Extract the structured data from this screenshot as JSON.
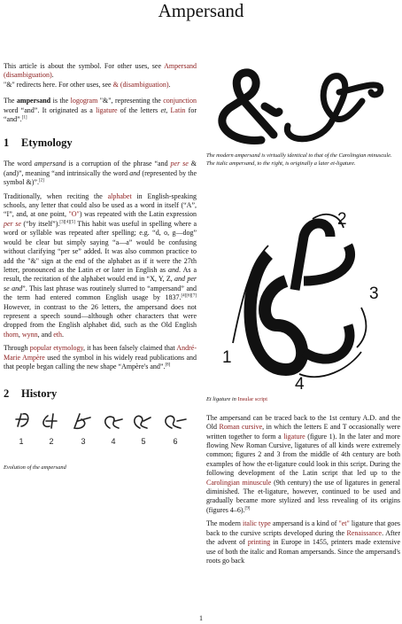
{
  "title": "Ampersand",
  "left": {
    "intro": [
      [
        "This article is about the symbol. For other uses, see ",
        {
          "text": "Ampersand (disambiguation)",
          "style": "link"
        },
        "."
      ],
      [
        "\"&\" redirects here. For other uses, see ",
        {
          "text": "& (disambiguation)",
          "style": "link"
        },
        "."
      ]
    ],
    "lead": [
      "The ",
      {
        "text": "ampersand",
        "style": "bold"
      },
      " is the ",
      {
        "text": "logogram",
        "style": "link"
      },
      " \"&\", representing the ",
      {
        "text": "conjunction",
        "style": "link"
      },
      " word “and”. It originated as a ",
      {
        "text": "ligature",
        "style": "link"
      },
      " of the letters ",
      {
        "text": "et",
        "style": "italic"
      },
      ", ",
      {
        "text": "Latin",
        "style": "link"
      },
      " for “and”.",
      {
        "text": "[1]",
        "style": "sup"
      }
    ],
    "etymology": {
      "number": "1",
      "heading": "Etymology",
      "paragraphs": [
        [
          "The word ",
          {
            "text": "ampersand",
            "style": "italic"
          },
          " is a corruption of the phrase “and ",
          {
            "text": "per se",
            "style": "linkitalic"
          },
          " & (and)”, meaning “and intrinsically the word ",
          {
            "text": "and",
            "style": "italic"
          },
          " (represented by the symbol &)”.",
          {
            "text": "[2]",
            "style": "sup"
          }
        ],
        [
          "Traditionally, when reciting the ",
          {
            "text": "alphabet",
            "style": "link"
          },
          " in English-speaking schools, any letter that could also be used as a word in itself (“A”, “I”, and, at one point, ",
          {
            "text": "\"O\"",
            "style": "link"
          },
          ") was repeated with the Latin expression ",
          {
            "text": "per se",
            "style": "linkitalic"
          },
          " (“by itself”).",
          {
            "text": "[3][4][5]",
            "style": "sup"
          },
          " This habit was useful in spelling where a word or syllable was repeated after spelling; e.g. “d, o, g—dog” would be clear but simply saying “a—a” would be confusing without clarifying “per se” added. It was also common practice to add the \"&\" sign at the end of the alphabet as if it were the 27th letter, pronounced as the Latin ",
          {
            "text": "et",
            "style": "italic"
          },
          " or later in English as ",
          {
            "text": "and",
            "style": "italic"
          },
          ". As a result, the recitation of the alphabet would end in “X, Y, Z, ",
          {
            "text": "and per se and",
            "style": "italic"
          },
          "”. This last phrase was routinely slurred to “ampersand” and the term had entered common English usage by 1837.",
          {
            "text": "[4][6][7]",
            "style": "sup"
          },
          " However, in contrast to the 26 letters, the ampersand does not represent a speech sound—although other characters that were dropped from the English alphabet did, such as the Old English ",
          {
            "text": "thorn",
            "style": "link"
          },
          ", ",
          {
            "text": "wynn",
            "style": "link"
          },
          ", and ",
          {
            "text": "eth",
            "style": "link"
          },
          "."
        ],
        [
          "Through ",
          {
            "text": "popular etymology",
            "style": "link"
          },
          ", it has been falsely claimed that ",
          {
            "text": "André-Marie Ampère",
            "style": "link"
          },
          " used the symbol in his widely read publications and that people began calling the new shape “Ampère's and”.",
          {
            "text": "[8]",
            "style": "sup"
          }
        ]
      ]
    },
    "history": {
      "number": "2",
      "heading": "History",
      "figure_labels": [
        "1",
        "2",
        "3",
        "4",
        "5",
        "6"
      ],
      "caption": "Evolution of the ampersand"
    }
  },
  "right": {
    "figure1_caption": "The modern ampersand is virtually identical to that of the Carolingian minuscule. The italic ampersand, to the right, is originally a later et-ligature.",
    "figure2_labels": [
      "1",
      "2",
      "3",
      "4"
    ],
    "figure2_caption": [
      "Et ligature in ",
      {
        "text": "Insular script",
        "style": "link"
      }
    ],
    "paragraphs": [
      [
        "The ampersand can be traced back to the 1st century A.D. and the Old ",
        {
          "text": "Roman cursive",
          "style": "link"
        },
        ", in which the letters E and T occasionally were written together to form a ",
        {
          "text": "ligature",
          "style": "link"
        },
        " (figure 1). In the later and more flowing New Roman Cursive, ligatures of all kinds were extremely common; figures 2 and 3 from the middle of 4th century are both examples of how the et-ligature could look in this script. During the following development of the Latin script that led up to the ",
        {
          "text": "Carolingian minuscule",
          "style": "link"
        },
        " (9th century) the use of ligatures in general diminished. The et-ligature, however, continued to be used and gradually became more stylized and less revealing of its origins (figures 4–6).",
        {
          "text": "[9]",
          "style": "sup"
        }
      ],
      [
        "The modern ",
        {
          "text": "italic type",
          "style": "link"
        },
        " ampersand is a kind of ",
        {
          "text": "\"et\"",
          "style": "link"
        },
        " ligature that goes back to the cursive scripts developed during the ",
        {
          "text": "Renaissance",
          "style": "link"
        },
        ". After the advent of ",
        {
          "text": "printing",
          "style": "link"
        },
        " in Europe in 1455, printers made extensive use of both the italic and Roman ampersands. Since the ampersand's roots go back"
      ]
    ]
  },
  "page_number": "1"
}
